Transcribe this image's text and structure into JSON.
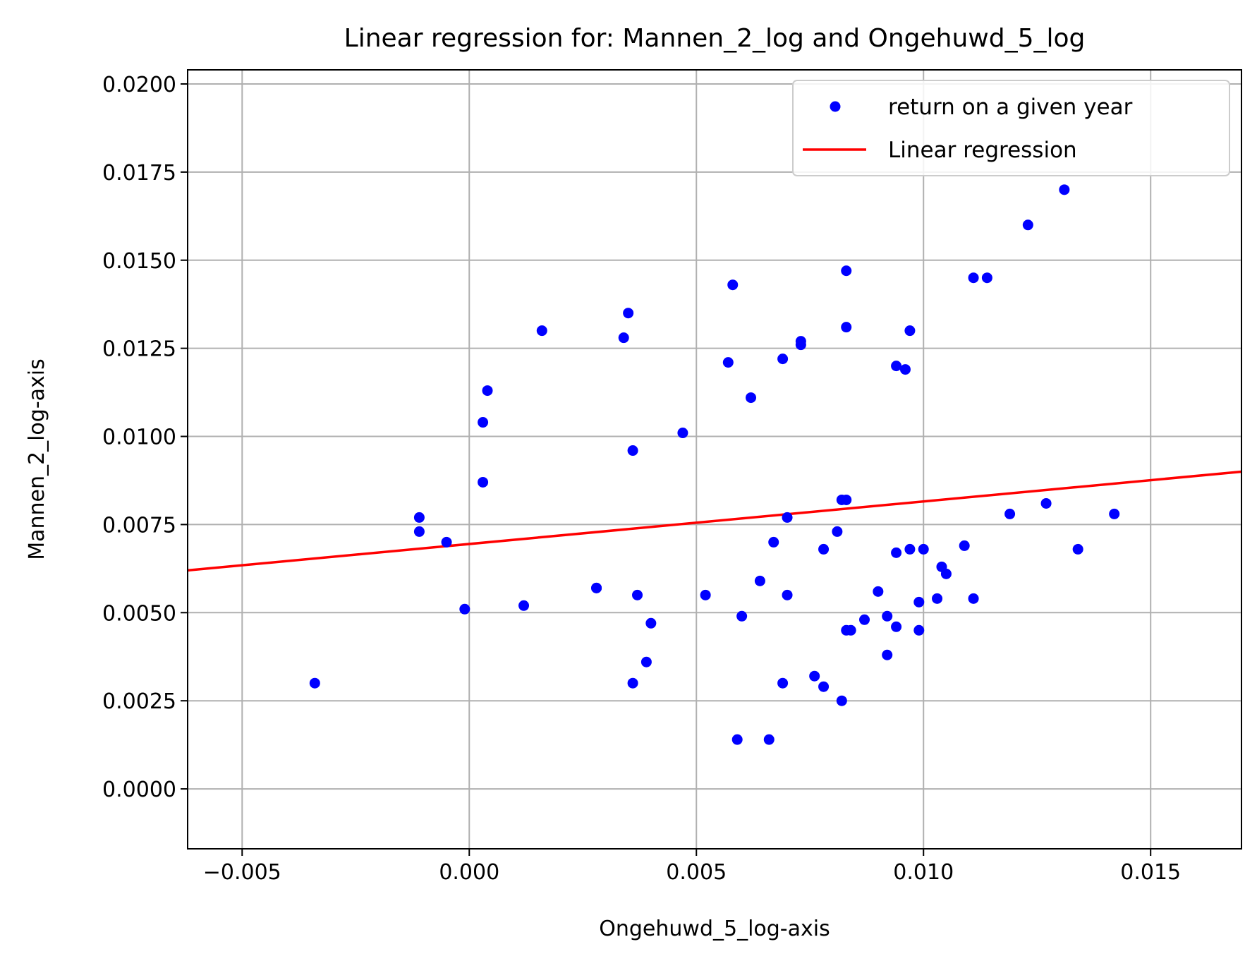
{
  "chart_data": {
    "type": "scatter",
    "title": "Linear regression for: Mannen_2_log and Ongehuwd_5_log",
    "xlabel": "Ongehuwd_5_log-axis",
    "ylabel": "Mannen_2_log-axis",
    "xlim": [
      -0.0062,
      0.017
    ],
    "ylim": [
      -0.0017,
      0.0204
    ],
    "xticks": [
      -0.005,
      0.0,
      0.005,
      0.01,
      0.015
    ],
    "xtick_labels": [
      "−0.005",
      "0.000",
      "0.005",
      "0.010",
      "0.015"
    ],
    "yticks": [
      0.0,
      0.0025,
      0.005,
      0.0075,
      0.01,
      0.0125,
      0.015,
      0.0175,
      0.02
    ],
    "ytick_labels": [
      "0.0000",
      "0.0025",
      "0.0050",
      "0.0075",
      "0.0100",
      "0.0125",
      "0.0150",
      "0.0175",
      "0.0200"
    ],
    "grid": true,
    "legend_position": "top-right",
    "series": [
      {
        "name": "return on a given year",
        "type": "scatter",
        "color": "#0000ff",
        "points": [
          [
            -0.0034,
            0.003
          ],
          [
            -0.0011,
            0.0077
          ],
          [
            -0.0011,
            0.0073
          ],
          [
            -0.0005,
            0.007
          ],
          [
            -0.0001,
            0.0051
          ],
          [
            0.0003,
            0.0087
          ],
          [
            0.0003,
            0.0104
          ],
          [
            0.0004,
            0.0113
          ],
          [
            0.0012,
            0.0052
          ],
          [
            0.0016,
            0.013
          ],
          [
            0.0028,
            0.0057
          ],
          [
            0.0028,
            0.0057
          ],
          [
            0.0034,
            0.0128
          ],
          [
            0.0035,
            0.0135
          ],
          [
            0.0036,
            0.0096
          ],
          [
            0.0036,
            0.003
          ],
          [
            0.0037,
            0.0055
          ],
          [
            0.0039,
            0.0036
          ],
          [
            0.004,
            0.0047
          ],
          [
            0.0047,
            0.0101
          ],
          [
            0.0052,
            0.0055
          ],
          [
            0.0057,
            0.0121
          ],
          [
            0.0058,
            0.0143
          ],
          [
            0.0059,
            0.0014
          ],
          [
            0.006,
            0.0049
          ],
          [
            0.0062,
            0.0111
          ],
          [
            0.0064,
            0.0059
          ],
          [
            0.0066,
            0.0014
          ],
          [
            0.0067,
            0.007
          ],
          [
            0.0069,
            0.0122
          ],
          [
            0.0069,
            0.003
          ],
          [
            0.007,
            0.0055
          ],
          [
            0.007,
            0.0077
          ],
          [
            0.0073,
            0.0127
          ],
          [
            0.0073,
            0.0126
          ],
          [
            0.0076,
            0.0032
          ],
          [
            0.0078,
            0.0029
          ],
          [
            0.0078,
            0.0068
          ],
          [
            0.0081,
            0.0073
          ],
          [
            0.0082,
            0.0025
          ],
          [
            0.0082,
            0.0082
          ],
          [
            0.0083,
            0.0082
          ],
          [
            0.0083,
            0.0147
          ],
          [
            0.0083,
            0.0131
          ],
          [
            0.0083,
            0.0045
          ],
          [
            0.0084,
            0.0045
          ],
          [
            0.0087,
            0.0048
          ],
          [
            0.009,
            0.0056
          ],
          [
            0.0092,
            0.0049
          ],
          [
            0.0092,
            0.0038
          ],
          [
            0.0094,
            0.012
          ],
          [
            0.0094,
            0.0067
          ],
          [
            0.0094,
            0.0046
          ],
          [
            0.0096,
            0.0119
          ],
          [
            0.0097,
            0.013
          ],
          [
            0.0097,
            0.0068
          ],
          [
            0.0099,
            0.0045
          ],
          [
            0.0099,
            0.0053
          ],
          [
            0.01,
            0.0068
          ],
          [
            0.0103,
            0.0054
          ],
          [
            0.0104,
            0.0063
          ],
          [
            0.0105,
            0.0061
          ],
          [
            0.0109,
            0.0069
          ],
          [
            0.0111,
            0.0054
          ],
          [
            0.0111,
            0.0145
          ],
          [
            0.0114,
            0.0145
          ],
          [
            0.0119,
            0.0078
          ],
          [
            0.0123,
            0.016
          ],
          [
            0.0127,
            0.0081
          ],
          [
            0.0131,
            0.017
          ],
          [
            0.0134,
            0.0068
          ],
          [
            0.0142,
            0.0078
          ]
        ]
      },
      {
        "name": "Linear regression",
        "type": "line",
        "color": "#ff0000",
        "points": [
          [
            -0.0062,
            0.0062
          ],
          [
            0.017,
            0.009
          ]
        ]
      }
    ]
  }
}
